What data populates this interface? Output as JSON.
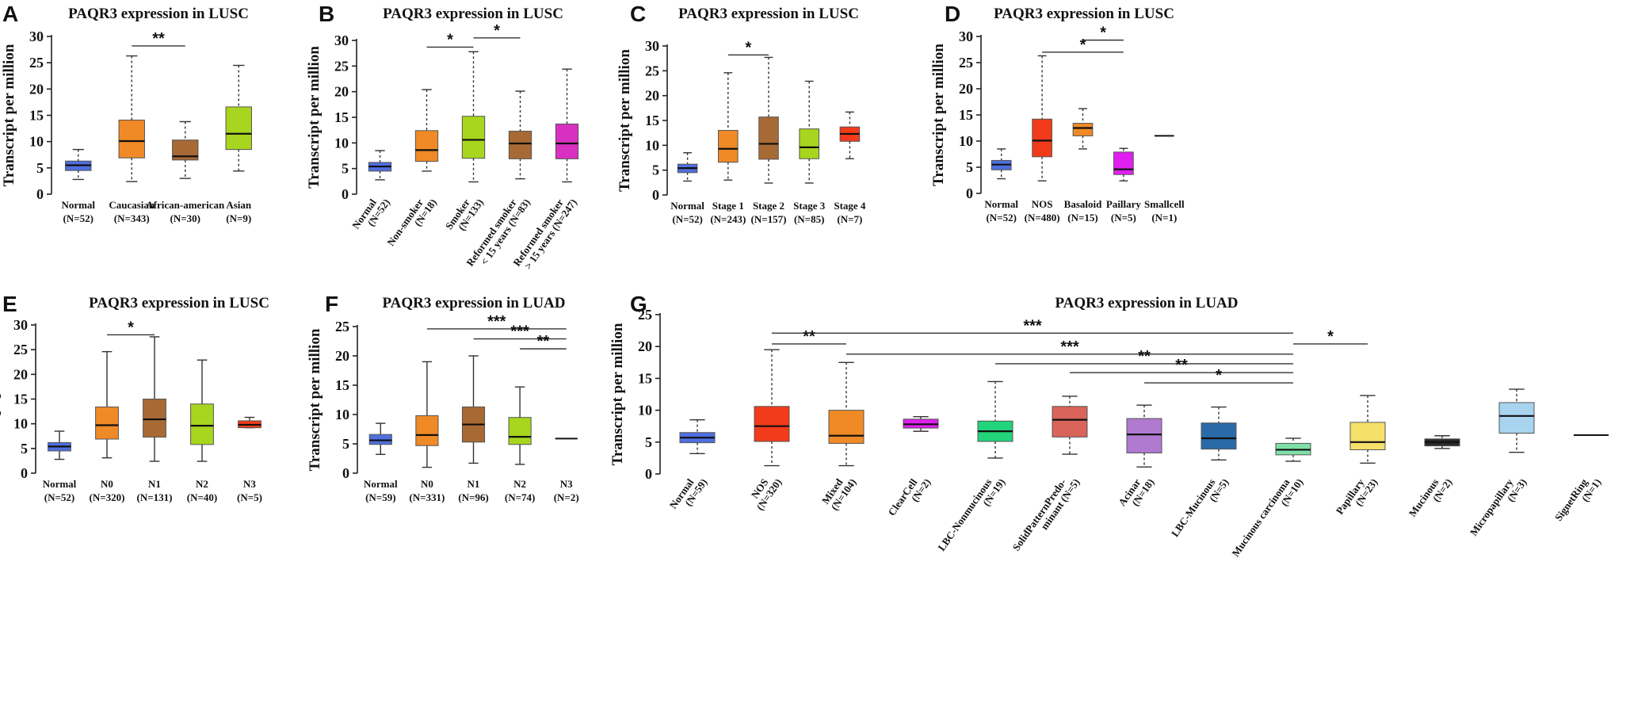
{
  "chart_data": [
    {
      "id": "A",
      "type": "box",
      "letter": "A",
      "title": "PAQR3 expression in LUSC",
      "ylabel": "Transcript per million",
      "ylim": [
        0,
        30
      ],
      "yticks": [
        0,
        5,
        10,
        15,
        20,
        25,
        30
      ],
      "rotated_labels": false,
      "groups": [
        {
          "label": "Normal",
          "n": "(N=52)",
          "color": "#4f6fe0",
          "min": 2.8,
          "q1": 4.5,
          "median": 5.5,
          "q3": 6.3,
          "max": 8.5
        },
        {
          "label": "Caucasian",
          "n": "(N=343)",
          "color": "#f08a26",
          "min": 2.4,
          "q1": 6.9,
          "median": 10.1,
          "q3": 14.1,
          "max": 26.3
        },
        {
          "label": "African-american",
          "n": "(N=30)",
          "color": "#a86a35",
          "min": 3.0,
          "q1": 6.5,
          "median": 7.2,
          "q3": 10.3,
          "max": 13.8
        },
        {
          "label": "Asian",
          "n": "(N=9)",
          "color": "#a8d61e",
          "min": 4.4,
          "q1": 8.5,
          "median": 11.5,
          "q3": 16.6,
          "max": 24.5
        }
      ],
      "significance": [
        {
          "label": "**",
          "from": 1,
          "to": 2,
          "y": 28.2
        }
      ]
    },
    {
      "id": "B",
      "type": "box",
      "letter": "B",
      "title": "PAQR3 expression in LUSC",
      "ylabel": "Transcript per million",
      "ylim": [
        0,
        30
      ],
      "yticks": [
        0,
        5,
        10,
        15,
        20,
        25,
        30
      ],
      "rotated_labels": true,
      "groups": [
        {
          "label": "Normal",
          "n": "(N=52)",
          "color": "#4f6fe0",
          "min": 2.8,
          "q1": 4.5,
          "median": 5.4,
          "q3": 6.2,
          "max": 8.5
        },
        {
          "label": "Non-smoker",
          "n": "(N=18)",
          "color": "#f08a26",
          "min": 4.5,
          "q1": 6.4,
          "median": 8.6,
          "q3": 12.4,
          "max": 20.4
        },
        {
          "label": "Smoker",
          "n": "(N=133)",
          "color": "#a8d61e",
          "min": 2.4,
          "q1": 7.0,
          "median": 10.6,
          "q3": 15.2,
          "max": 27.8
        },
        {
          "label": "Reformed smoker",
          "label2": "< 15 years (N=83)",
          "color": "#a86a35",
          "min": 3.0,
          "q1": 6.9,
          "median": 9.9,
          "q3": 12.3,
          "max": 20.1
        },
        {
          "label": "Reformed smoker",
          "label2": "> 15 years (N=247)",
          "color": "#d830c0",
          "min": 2.4,
          "q1": 6.9,
          "median": 9.9,
          "q3": 13.7,
          "max": 24.4
        }
      ],
      "significance": [
        {
          "label": "*",
          "from": 1,
          "to": 2,
          "y": 28.7
        },
        {
          "label": "*",
          "from": 2,
          "to": 3,
          "y": 30.5
        }
      ]
    },
    {
      "id": "C",
      "type": "box",
      "letter": "C",
      "title": "PAQR3 expression in LUSC",
      "ylabel": "Transcript per million",
      "ylim": [
        0,
        30
      ],
      "yticks": [
        0,
        5,
        10,
        15,
        20,
        25,
        30
      ],
      "rotated_labels": false,
      "groups": [
        {
          "label": "Normal",
          "n": "(N=52)",
          "color": "#4f6fe0",
          "min": 2.8,
          "q1": 4.5,
          "median": 5.4,
          "q3": 6.2,
          "max": 8.5
        },
        {
          "label": "Stage 1",
          "n": "(N=243)",
          "color": "#f08a26",
          "min": 3.0,
          "q1": 6.6,
          "median": 9.3,
          "q3": 13.0,
          "max": 24.6
        },
        {
          "label": "Stage 2",
          "n": "(N=157)",
          "color": "#a86a35",
          "min": 2.4,
          "q1": 7.2,
          "median": 10.3,
          "q3": 15.7,
          "max": 27.7
        },
        {
          "label": "Stage 3",
          "n": "(N=85)",
          "color": "#a8d61e",
          "min": 2.4,
          "q1": 7.3,
          "median": 9.6,
          "q3": 13.3,
          "max": 22.9
        },
        {
          "label": "Stage 4",
          "n": "(N=7)",
          "color": "#f23b1a",
          "min": 7.3,
          "q1": 10.8,
          "median": 12.3,
          "q3": 13.7,
          "max": 16.7
        }
      ],
      "significance": [
        {
          "label": "*",
          "from": 1,
          "to": 2,
          "y": 28.2
        }
      ]
    },
    {
      "id": "D",
      "type": "box",
      "letter": "D",
      "title": "PAQR3 expression in LUSC",
      "ylabel": "Transcript per million",
      "ylim": [
        0,
        30
      ],
      "yticks": [
        0,
        5,
        10,
        15,
        20,
        25,
        30
      ],
      "rotated_labels": false,
      "groups": [
        {
          "label": "Normal",
          "n": "(N=52)",
          "color": "#4f6fe0",
          "min": 2.8,
          "q1": 4.5,
          "median": 5.5,
          "q3": 6.3,
          "max": 8.5
        },
        {
          "label": "NOS",
          "n": "(N=480)",
          "color": "#f23b1a",
          "min": 2.4,
          "q1": 7.0,
          "median": 10.1,
          "q3": 14.2,
          "max": 26.3
        },
        {
          "label": "Basaloid",
          "n": "(N=15)",
          "color": "#f08a26",
          "min": 8.5,
          "q1": 11.0,
          "median": 12.5,
          "q3": 13.4,
          "max": 16.2
        },
        {
          "label": "Paillary",
          "n": "(N=5)",
          "color": "#e020f0",
          "min": 2.4,
          "q1": 3.6,
          "median": 4.6,
          "q3": 7.9,
          "max": 8.6
        },
        {
          "label": "Smallcell",
          "n": "(N=1)",
          "color": "#222222",
          "min": 11.0,
          "q1": 11.0,
          "median": 11.0,
          "q3": 11.0,
          "max": 11.0
        }
      ],
      "significance": [
        {
          "label": "*",
          "from": 1,
          "to": 3,
          "y": 27.0
        },
        {
          "label": "*",
          "from": 2,
          "to": 3,
          "y": 29.3
        }
      ]
    },
    {
      "id": "E",
      "type": "box",
      "letter": "E",
      "title": "PAQR3 expression in LUSC",
      "ylabel": "Transcript per million",
      "ylim": [
        0,
        30
      ],
      "yticks": [
        0,
        5,
        10,
        15,
        20,
        25,
        30
      ],
      "rotated_labels": false,
      "groups": [
        {
          "label": "Normal",
          "n": "(N=52)",
          "color": "#4f6fe0",
          "min": 2.8,
          "q1": 4.5,
          "median": 5.4,
          "q3": 6.2,
          "max": 8.5
        },
        {
          "label": "N0",
          "n": "(N=320)",
          "color": "#f08a26",
          "min": 3.1,
          "q1": 6.9,
          "median": 9.7,
          "q3": 13.4,
          "max": 24.6
        },
        {
          "label": "N1",
          "n": "(N=131)",
          "color": "#a86a35",
          "min": 2.4,
          "q1": 7.3,
          "median": 10.9,
          "q3": 15.0,
          "max": 27.6
        },
        {
          "label": "N2",
          "n": "(N=40)",
          "color": "#a8d61e",
          "min": 2.4,
          "q1": 5.8,
          "median": 9.6,
          "q3": 14.0,
          "max": 22.9
        },
        {
          "label": "N3",
          "n": "(N=5)",
          "color": "#f23b1a",
          "min": 9.2,
          "q1": 9.2,
          "median": 9.8,
          "q3": 10.6,
          "max": 11.3
        }
      ],
      "significance": [
        {
          "label": "*",
          "from": 1,
          "to": 2,
          "y": 28.0
        }
      ]
    },
    {
      "id": "F",
      "type": "box",
      "letter": "F",
      "title": "PAQR3 expression in LUAD",
      "ylabel": "Transcript per million",
      "ylim": [
        0,
        25
      ],
      "yticks": [
        0,
        5,
        10,
        15,
        20,
        25
      ],
      "rotated_labels": false,
      "groups": [
        {
          "label": "Normal",
          "n": "(N=59)",
          "color": "#4f6fe0",
          "min": 3.2,
          "q1": 4.9,
          "median": 5.6,
          "q3": 6.6,
          "max": 8.5
        },
        {
          "label": "N0",
          "n": "(N=331)",
          "color": "#f08a26",
          "min": 1.0,
          "q1": 4.7,
          "median": 6.5,
          "q3": 9.8,
          "max": 19.0
        },
        {
          "label": "N1",
          "n": "(N=96)",
          "color": "#a86a35",
          "min": 1.7,
          "q1": 5.3,
          "median": 8.3,
          "q3": 11.3,
          "max": 20.0
        },
        {
          "label": "N2",
          "n": "(N=74)",
          "color": "#a8d61e",
          "min": 1.5,
          "q1": 4.9,
          "median": 6.2,
          "q3": 9.5,
          "max": 14.7
        },
        {
          "label": "N3",
          "n": "(N=2)",
          "color": "#222222",
          "min": 5.9,
          "q1": 5.9,
          "median": 5.9,
          "q3": 5.9,
          "max": 5.9
        }
      ],
      "significance": [
        {
          "label": "***",
          "from": 1,
          "to": 4,
          "y": 24.6
        },
        {
          "label": "***",
          "from": 2,
          "to": 4,
          "y": 22.9
        },
        {
          "label": "**",
          "from": 3,
          "to": 4,
          "y": 21.2
        }
      ]
    },
    {
      "id": "G",
      "type": "box",
      "letter": "G",
      "title": "PAQR3 expression in LUAD",
      "ylabel": "Transcript per million",
      "ylim": [
        0,
        25
      ],
      "yticks": [
        0,
        5,
        10,
        15,
        20,
        25
      ],
      "rotated_labels": true,
      "groups": [
        {
          "label": "Normal",
          "label2": "(N=59)",
          "color": "#4f6fe0",
          "min": 3.2,
          "q1": 4.9,
          "median": 5.7,
          "q3": 6.5,
          "max": 8.5
        },
        {
          "label": "NOS",
          "label2": "(N=320)",
          "color": "#f23b1a",
          "min": 1.3,
          "q1": 5.1,
          "median": 7.5,
          "q3": 10.6,
          "max": 19.5
        },
        {
          "label": "Mixed",
          "label2": "(N=104)",
          "color": "#f08a26",
          "min": 1.3,
          "q1": 4.8,
          "median": 6.0,
          "q3": 10.0,
          "max": 17.5
        },
        {
          "label": "ClearCell",
          "label2": "(N=2)",
          "color": "#e020f0",
          "min": 6.7,
          "q1": 7.2,
          "median": 7.8,
          "q3": 8.6,
          "max": 9.0
        },
        {
          "label": "LBC-Nonmucinous",
          "label2": "(N=19)",
          "color": "#22d47a",
          "min": 2.5,
          "q1": 5.1,
          "median": 6.7,
          "q3": 8.3,
          "max": 14.5
        },
        {
          "label": "SolidPatternPredo-",
          "label2": "minant (N=5)",
          "color": "#d9645a",
          "min": 3.1,
          "q1": 5.8,
          "median": 8.5,
          "q3": 10.6,
          "max": 12.2
        },
        {
          "label": "Acinar",
          "label2": "(N=18)",
          "color": "#b07ad0",
          "min": 1.1,
          "q1": 3.3,
          "median": 6.2,
          "q3": 8.7,
          "max": 10.8
        },
        {
          "label": "LBC-Mucinous",
          "label2": "(N=5)",
          "color": "#2a6aa8",
          "min": 2.2,
          "q1": 3.9,
          "median": 5.6,
          "q3": 8.0,
          "max": 10.5
        },
        {
          "label": "Mucinous carcinoma",
          "label2": "(N=10)",
          "color": "#7ee0a8",
          "min": 2.0,
          "q1": 3.0,
          "median": 3.8,
          "q3": 4.8,
          "max": 5.6
        },
        {
          "label": "Papillary",
          "label2": "(N=23)",
          "color": "#f5e06a",
          "min": 1.7,
          "q1": 3.8,
          "median": 5.0,
          "q3": 8.1,
          "max": 12.3
        },
        {
          "label": "Mucinous",
          "label2": "(N=2)",
          "color": "#2a2a2a",
          "min": 4.0,
          "q1": 4.4,
          "median": 5.0,
          "q3": 5.5,
          "max": 6.0
        },
        {
          "label": "Micropapillary",
          "label2": "(N=3)",
          "color": "#a8d4f0",
          "min": 3.4,
          "q1": 6.4,
          "median": 9.1,
          "q3": 11.2,
          "max": 13.3
        },
        {
          "label": "SignetRing",
          "label2": "(N=1)",
          "color": "#222222",
          "min": 6.1,
          "q1": 6.1,
          "median": 6.1,
          "q3": 6.1,
          "max": 6.1
        }
      ],
      "significance": [
        {
          "label": "***",
          "from": 1,
          "to": 8,
          "y": 22.1
        },
        {
          "label": "**",
          "from": 1,
          "to": 2,
          "y": 20.4
        },
        {
          "label": "*",
          "from": 8,
          "to": 9,
          "y": 20.4
        },
        {
          "label": "***",
          "from": 2,
          "to": 8,
          "y": 18.8
        },
        {
          "label": "**",
          "from": 4,
          "to": 8,
          "y": 17.3
        },
        {
          "label": "**",
          "from": 5,
          "to": 8,
          "y": 15.9
        },
        {
          "label": "*",
          "from": 6,
          "to": 8,
          "y": 14.3
        }
      ]
    }
  ]
}
